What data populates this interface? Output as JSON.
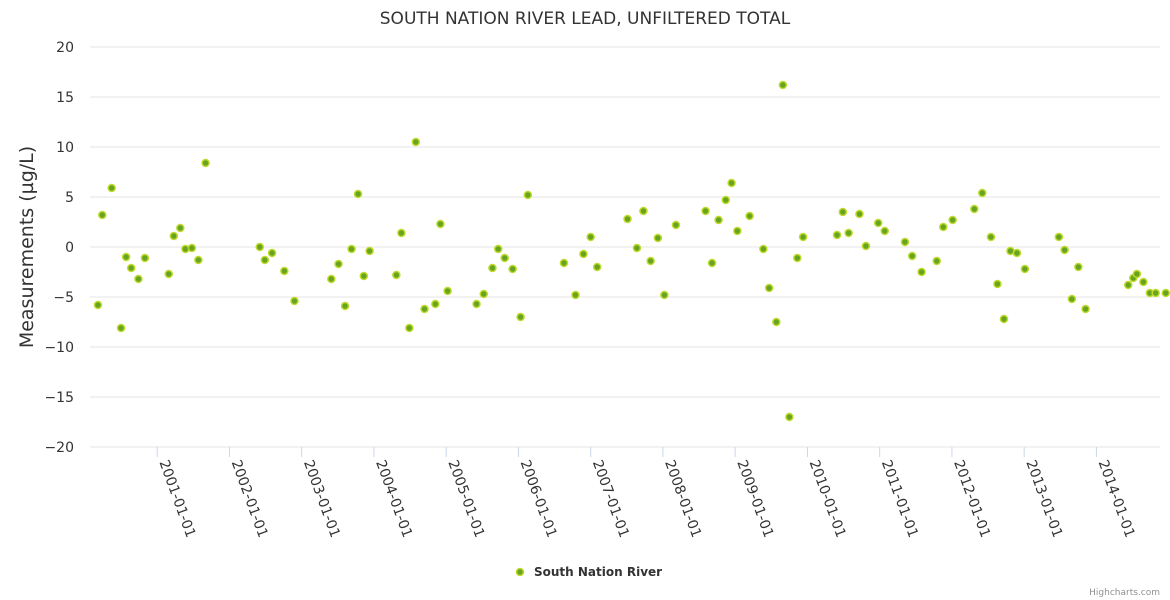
{
  "chart_data": {
    "type": "scatter",
    "title": "SOUTH NATION RIVER LEAD, UNFILTERED TOTAL",
    "ylabel": "Measurements (µg/L)",
    "xlabel": "",
    "ylim": [
      -20,
      20
    ],
    "yticks": [
      20,
      15,
      10,
      5,
      0,
      -5,
      -10,
      -15,
      -20
    ],
    "ytick_labels": [
      "20",
      "15",
      "10",
      "5",
      "0",
      "−5",
      "−10",
      "−15",
      "−20"
    ],
    "xlim": [
      2000.07,
      2014.88
    ],
    "xticks": [
      2001,
      2002,
      2003,
      2004,
      2005,
      2006,
      2007,
      2008,
      2009,
      2010,
      2011,
      2012,
      2013,
      2014
    ],
    "xtick_labels": [
      "2001-01-01",
      "2002-01-01",
      "2003-01-01",
      "2004-01-01",
      "2005-01-01",
      "2006-01-01",
      "2007-01-01",
      "2008-01-01",
      "2009-01-01",
      "2010-01-01",
      "2011-01-01",
      "2012-01-01",
      "2013-01-01",
      "2014-01-01"
    ],
    "grid": true,
    "legend_position": "bottom-center",
    "series": [
      {
        "name": "South Nation River",
        "color": "#66a61e",
        "x": [
          2000.18,
          2000.24,
          2000.37,
          2000.5,
          2000.57,
          2000.64,
          2000.74,
          2000.83,
          2001.16,
          2001.23,
          2001.32,
          2001.39,
          2001.48,
          2001.57,
          2001.67,
          2002.42,
          2002.49,
          2002.59,
          2002.76,
          2002.9,
          2003.41,
          2003.51,
          2003.6,
          2003.69,
          2003.78,
          2003.86,
          2003.94,
          2004.31,
          2004.38,
          2004.49,
          2004.58,
          2004.7,
          2004.85,
          2004.92,
          2005.02,
          2005.42,
          2005.52,
          2005.64,
          2005.72,
          2005.81,
          2005.92,
          2006.03,
          2006.13,
          2006.63,
          2006.79,
          2006.9,
          2007.0,
          2007.09,
          2007.51,
          2007.64,
          2007.73,
          2007.83,
          2007.93,
          2008.02,
          2008.18,
          2008.59,
          2008.68,
          2008.77,
          2008.87,
          2008.95,
          2009.03,
          2009.2,
          2009.39,
          2009.47,
          2009.57,
          2009.66,
          2009.75,
          2009.86,
          2009.94,
          2010.41,
          2010.49,
          2010.57,
          2010.72,
          2010.81,
          2010.98,
          2011.07,
          2011.35,
          2011.45,
          2011.58,
          2011.79,
          2011.88,
          2012.01,
          2012.31,
          2012.42,
          2012.54,
          2012.63,
          2012.72,
          2012.81,
          2012.9,
          2013.01,
          2013.48,
          2013.56,
          2013.66,
          2013.75,
          2013.85,
          2014.44,
          2014.51,
          2014.56,
          2014.65,
          2014.74,
          2014.82,
          2014.96
        ],
        "y": [
          -5.8,
          3.2,
          5.9,
          -8.1,
          -1.0,
          -2.1,
          -3.2,
          -1.1,
          -2.7,
          1.1,
          1.9,
          -0.2,
          -0.1,
          -1.3,
          8.4,
          0.0,
          -1.3,
          -0.6,
          -2.4,
          -5.4,
          -3.2,
          -1.7,
          -5.9,
          -0.2,
          5.3,
          -2.9,
          -0.4,
          -2.8,
          1.4,
          -8.1,
          10.5,
          -6.2,
          -5.7,
          2.3,
          -4.4,
          -5.7,
          -4.7,
          -2.1,
          -0.2,
          -1.1,
          -2.2,
          -7.0,
          5.2,
          -1.6,
          -4.8,
          -0.7,
          1.0,
          -2.0,
          2.8,
          -0.1,
          3.6,
          -1.4,
          0.9,
          -4.8,
          2.2,
          3.6,
          -1.6,
          2.7,
          4.7,
          6.4,
          1.6,
          3.1,
          -0.2,
          -4.1,
          -7.5,
          16.2,
          -17.0,
          -1.1,
          1.0,
          1.2,
          3.5,
          1.4,
          3.3,
          0.1,
          2.4,
          1.6,
          0.5,
          -0.9,
          -2.5,
          -1.4,
          2.0,
          2.7,
          3.8,
          5.4,
          1.0,
          -3.7,
          -7.2,
          -0.4,
          -0.6,
          -2.2,
          1.0,
          -0.3,
          -5.2,
          -2.0,
          -6.2,
          -3.8,
          -3.1,
          -2.7,
          -3.5,
          -4.6,
          -4.6,
          -4.6
        ]
      }
    ],
    "credits": "Highcharts.com"
  }
}
